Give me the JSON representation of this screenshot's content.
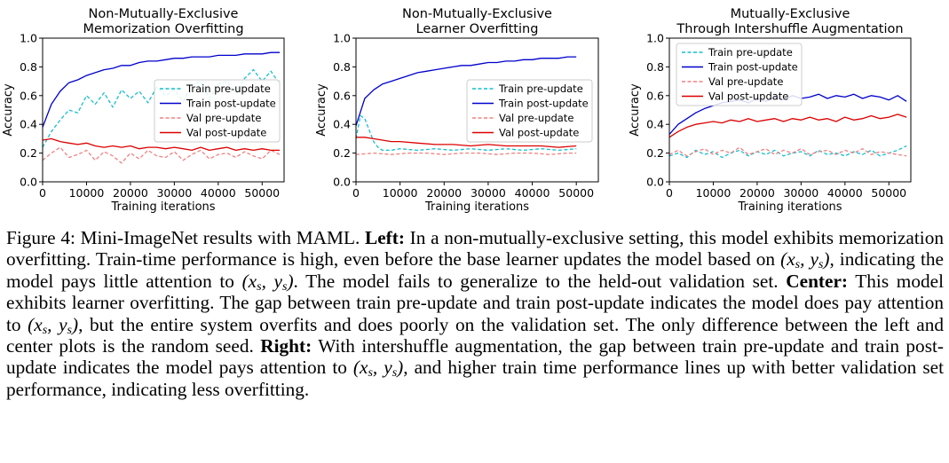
{
  "colors": {
    "train_pre": "#17becf",
    "train_post": "#0000cc",
    "val_pre": "#f08080",
    "val_post": "#dd0000"
  },
  "xlabel": "Training iterations",
  "ylabel": "Accuracy",
  "chart_data": [
    {
      "type": "line",
      "title": [
        "Non-Mutually-Exclusive",
        "Memorization Overfitting"
      ],
      "xlabel": "Training iterations",
      "ylabel": "Accuracy",
      "xlim": [
        0,
        55000
      ],
      "ylim": [
        0,
        1.0
      ],
      "xticks": [
        "0",
        "10000",
        "20000",
        "30000",
        "40000",
        "50000"
      ],
      "yticks": [
        "0.0",
        "0.2",
        "0.4",
        "0.6",
        "0.8",
        "1.0"
      ],
      "legend": "center-right",
      "series": [
        {
          "name": "Train pre-update",
          "style": "dashed",
          "x": [
            0,
            2000,
            4000,
            6000,
            8000,
            10000,
            12000,
            14000,
            16000,
            18000,
            20000,
            22000,
            24000,
            26000,
            28000,
            30000,
            32000,
            34000,
            36000,
            38000,
            40000,
            42000,
            44000,
            46000,
            48000,
            50000,
            52000,
            54000
          ],
          "values": [
            0.24,
            0.35,
            0.43,
            0.5,
            0.48,
            0.6,
            0.54,
            0.62,
            0.52,
            0.64,
            0.58,
            0.63,
            0.55,
            0.66,
            0.6,
            0.64,
            0.56,
            0.67,
            0.7,
            0.58,
            0.68,
            0.7,
            0.62,
            0.72,
            0.78,
            0.7,
            0.77,
            0.68
          ]
        },
        {
          "name": "Train post-update",
          "style": "solid",
          "x": [
            0,
            2000,
            4000,
            6000,
            8000,
            10000,
            12000,
            14000,
            16000,
            18000,
            20000,
            22000,
            24000,
            26000,
            28000,
            30000,
            32000,
            34000,
            36000,
            38000,
            40000,
            42000,
            44000,
            46000,
            48000,
            50000,
            52000,
            54000
          ],
          "values": [
            0.38,
            0.54,
            0.63,
            0.69,
            0.71,
            0.74,
            0.76,
            0.78,
            0.79,
            0.81,
            0.81,
            0.83,
            0.84,
            0.84,
            0.85,
            0.86,
            0.86,
            0.87,
            0.87,
            0.87,
            0.88,
            0.88,
            0.88,
            0.89,
            0.89,
            0.89,
            0.9,
            0.9
          ]
        },
        {
          "name": "Val pre-update",
          "style": "dashed",
          "x": [
            0,
            2000,
            4000,
            6000,
            8000,
            10000,
            12000,
            14000,
            16000,
            18000,
            20000,
            22000,
            24000,
            26000,
            28000,
            30000,
            32000,
            34000,
            36000,
            38000,
            40000,
            42000,
            44000,
            46000,
            48000,
            50000,
            52000,
            54000
          ],
          "values": [
            0.15,
            0.2,
            0.24,
            0.17,
            0.19,
            0.22,
            0.15,
            0.21,
            0.18,
            0.13,
            0.2,
            0.16,
            0.22,
            0.18,
            0.17,
            0.21,
            0.15,
            0.19,
            0.22,
            0.16,
            0.19,
            0.2,
            0.17,
            0.21,
            0.18,
            0.16,
            0.22,
            0.19
          ]
        },
        {
          "name": "Val post-update",
          "style": "solid",
          "x": [
            0,
            2000,
            4000,
            6000,
            8000,
            10000,
            12000,
            14000,
            16000,
            18000,
            20000,
            22000,
            24000,
            26000,
            28000,
            30000,
            32000,
            34000,
            36000,
            38000,
            40000,
            42000,
            44000,
            46000,
            48000,
            50000,
            52000,
            54000
          ],
          "values": [
            0.29,
            0.3,
            0.28,
            0.27,
            0.26,
            0.27,
            0.25,
            0.24,
            0.25,
            0.24,
            0.25,
            0.23,
            0.24,
            0.24,
            0.23,
            0.24,
            0.23,
            0.22,
            0.24,
            0.22,
            0.23,
            0.24,
            0.22,
            0.23,
            0.22,
            0.23,
            0.22,
            0.22
          ]
        }
      ]
    },
    {
      "type": "line",
      "title": [
        "Non-Mutually-Exclusive",
        "Learner Overfitting"
      ],
      "xlabel": "Training iterations",
      "ylabel": "Accuracy",
      "xlim": [
        0,
        55000
      ],
      "ylim": [
        0,
        1.0
      ],
      "xticks": [
        "0",
        "10000",
        "20000",
        "30000",
        "40000",
        "50000"
      ],
      "yticks": [
        "0.0",
        "0.2",
        "0.4",
        "0.6",
        "0.8",
        "1.0"
      ],
      "legend": "center-right",
      "series": [
        {
          "name": "Train pre-update",
          "style": "dashed",
          "x": [
            0,
            1000,
            2000,
            3000,
            4000,
            5000,
            6000,
            8000,
            10000,
            14000,
            18000,
            22000,
            26000,
            30000,
            34000,
            38000,
            42000,
            46000,
            50000
          ],
          "values": [
            0.3,
            0.46,
            0.44,
            0.36,
            0.28,
            0.24,
            0.22,
            0.22,
            0.23,
            0.22,
            0.23,
            0.22,
            0.23,
            0.22,
            0.23,
            0.22,
            0.23,
            0.22,
            0.23
          ]
        },
        {
          "name": "Train post-update",
          "style": "solid",
          "x": [
            0,
            2000,
            4000,
            6000,
            8000,
            10000,
            12000,
            14000,
            16000,
            18000,
            20000,
            22000,
            24000,
            26000,
            28000,
            30000,
            32000,
            34000,
            36000,
            38000,
            40000,
            42000,
            44000,
            46000,
            48000,
            50000
          ],
          "values": [
            0.39,
            0.58,
            0.64,
            0.68,
            0.7,
            0.72,
            0.74,
            0.76,
            0.77,
            0.78,
            0.79,
            0.8,
            0.81,
            0.81,
            0.82,
            0.83,
            0.83,
            0.84,
            0.84,
            0.85,
            0.85,
            0.86,
            0.86,
            0.86,
            0.87,
            0.87
          ]
        },
        {
          "name": "Val pre-update",
          "style": "dashed",
          "x": [
            0,
            4000,
            8000,
            12000,
            16000,
            20000,
            24000,
            28000,
            32000,
            36000,
            40000,
            44000,
            48000,
            50000
          ],
          "values": [
            0.19,
            0.2,
            0.19,
            0.2,
            0.2,
            0.19,
            0.2,
            0.2,
            0.19,
            0.2,
            0.2,
            0.19,
            0.2,
            0.2
          ]
        },
        {
          "name": "Val post-update",
          "style": "solid",
          "x": [
            0,
            2000,
            4000,
            6000,
            8000,
            10000,
            14000,
            18000,
            22000,
            26000,
            30000,
            34000,
            38000,
            42000,
            46000,
            50000
          ],
          "values": [
            0.31,
            0.31,
            0.3,
            0.29,
            0.28,
            0.28,
            0.27,
            0.26,
            0.26,
            0.25,
            0.26,
            0.25,
            0.25,
            0.25,
            0.24,
            0.25
          ]
        }
      ]
    },
    {
      "type": "line",
      "title": [
        "Mutually-Exclusive",
        "Through Intershuffle Augmentation"
      ],
      "xlabel": "Training iterations",
      "ylabel": "Accuracy",
      "xlim": [
        0,
        55000
      ],
      "ylim": [
        0,
        1.0
      ],
      "xticks": [
        "0",
        "10000",
        "20000",
        "30000",
        "40000",
        "50000"
      ],
      "yticks": [
        "0.0",
        "0.2",
        "0.4",
        "0.6",
        "0.8",
        "1.0"
      ],
      "legend": "top-left",
      "series": [
        {
          "name": "Train pre-update",
          "style": "dashed",
          "x": [
            0,
            2000,
            4000,
            6000,
            8000,
            10000,
            12000,
            14000,
            16000,
            18000,
            20000,
            22000,
            24000,
            26000,
            28000,
            30000,
            32000,
            34000,
            36000,
            38000,
            40000,
            42000,
            44000,
            46000,
            48000,
            50000,
            52000,
            54000
          ],
          "values": [
            0.18,
            0.2,
            0.17,
            0.22,
            0.19,
            0.21,
            0.17,
            0.2,
            0.22,
            0.18,
            0.21,
            0.19,
            0.22,
            0.18,
            0.2,
            0.21,
            0.18,
            0.22,
            0.19,
            0.2,
            0.18,
            0.21,
            0.19,
            0.22,
            0.18,
            0.2,
            0.22,
            0.25
          ]
        },
        {
          "name": "Train post-update",
          "style": "solid",
          "x": [
            0,
            2000,
            4000,
            6000,
            8000,
            10000,
            12000,
            14000,
            16000,
            18000,
            20000,
            22000,
            24000,
            26000,
            28000,
            30000,
            32000,
            34000,
            36000,
            38000,
            40000,
            42000,
            44000,
            46000,
            48000,
            50000,
            52000,
            54000
          ],
          "values": [
            0.33,
            0.4,
            0.44,
            0.48,
            0.51,
            0.53,
            0.55,
            0.56,
            0.57,
            0.55,
            0.58,
            0.56,
            0.59,
            0.57,
            0.6,
            0.58,
            0.59,
            0.61,
            0.58,
            0.6,
            0.59,
            0.61,
            0.58,
            0.6,
            0.59,
            0.57,
            0.6,
            0.56
          ]
        },
        {
          "name": "Val pre-update",
          "style": "dashed",
          "x": [
            0,
            2000,
            4000,
            6000,
            8000,
            10000,
            12000,
            14000,
            16000,
            18000,
            20000,
            22000,
            24000,
            26000,
            28000,
            30000,
            32000,
            34000,
            36000,
            38000,
            40000,
            42000,
            44000,
            46000,
            48000,
            50000,
            52000,
            54000
          ],
          "values": [
            0.19,
            0.22,
            0.18,
            0.21,
            0.23,
            0.19,
            0.22,
            0.2,
            0.24,
            0.19,
            0.21,
            0.23,
            0.19,
            0.22,
            0.2,
            0.23,
            0.19,
            0.21,
            0.22,
            0.19,
            0.22,
            0.2,
            0.23,
            0.19,
            0.21,
            0.2,
            0.19,
            0.18
          ]
        },
        {
          "name": "Val post-update",
          "style": "solid",
          "x": [
            0,
            2000,
            4000,
            6000,
            8000,
            10000,
            12000,
            14000,
            16000,
            18000,
            20000,
            22000,
            24000,
            26000,
            28000,
            30000,
            32000,
            34000,
            36000,
            38000,
            40000,
            42000,
            44000,
            46000,
            48000,
            50000,
            52000,
            54000
          ],
          "values": [
            0.31,
            0.35,
            0.38,
            0.4,
            0.41,
            0.42,
            0.41,
            0.43,
            0.42,
            0.44,
            0.42,
            0.43,
            0.44,
            0.42,
            0.44,
            0.43,
            0.45,
            0.43,
            0.44,
            0.42,
            0.45,
            0.43,
            0.44,
            0.46,
            0.44,
            0.45,
            0.47,
            0.45
          ]
        }
      ]
    }
  ],
  "caption": {
    "label": "Figure 4:",
    "intro": "Mini-ImageNet results with MAML.",
    "left_head": "Left:",
    "left_a": "In a non-mutually-exclusive setting, this model exhibits memorization overfitting. Train-time performance is high, even before the base learner updates the model based on",
    "left_b": ", indicating the model pays little attention to",
    "left_c": ". The model fails to generalize to the held-out validation set.",
    "center_head": "Center:",
    "center_a": "This model exhibits learner overfitting. The gap between train pre-update and train post-update indicates the model does pay attention to",
    "center_b": ", but the entire system overfits and does poorly on the validation set. The only difference between the left and center plots is the random seed.",
    "right_head": "Right:",
    "right_a": "With intershuffle augmentation, the gap between train pre-update and train post-update indicates the model pays attention to",
    "right_b": ", and higher train time performance lines up with better validation set performance, indicating less overfitting.",
    "math": "(x_s, y_s)"
  }
}
